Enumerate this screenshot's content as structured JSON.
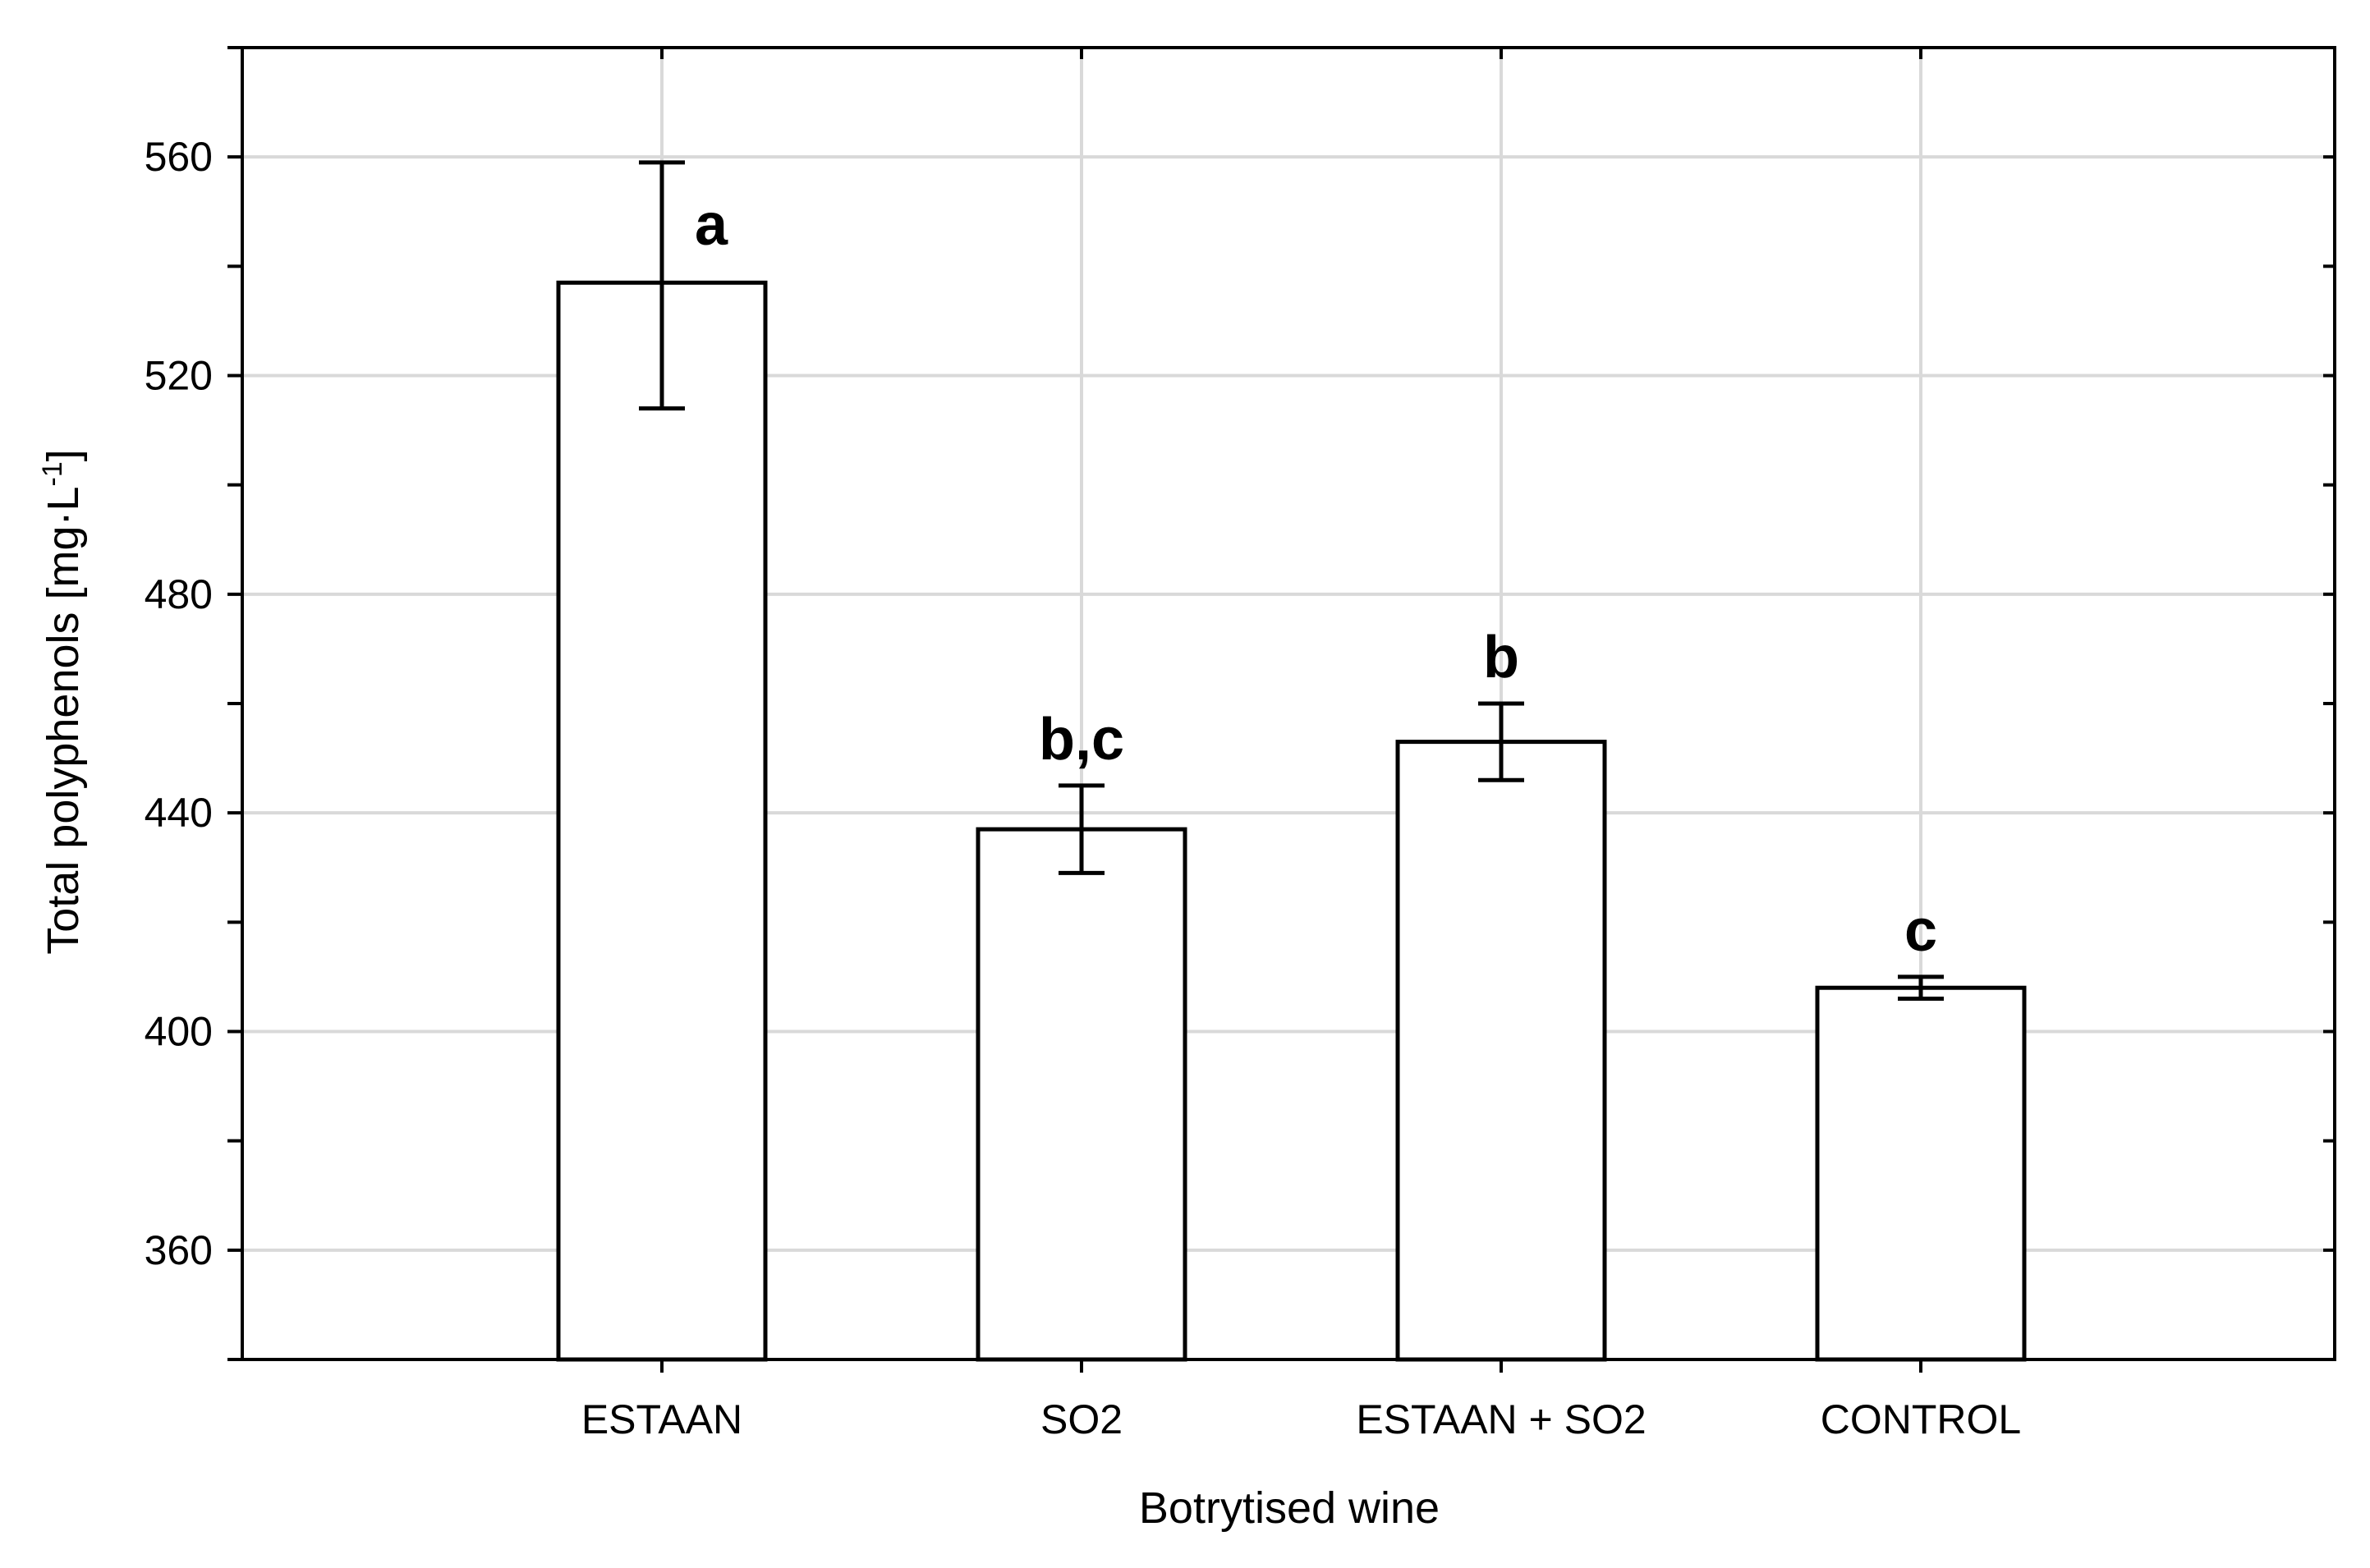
{
  "chart_data": {
    "type": "bar",
    "categories": [
      "ESTAAN",
      "SO2",
      "ESTAAN + SO2",
      "CONTROL"
    ],
    "values": [
      537,
      437,
      453,
      408
    ],
    "error_low": [
      514,
      429,
      446,
      406
    ],
    "error_high": [
      559,
      445,
      460,
      410
    ],
    "significance_labels": [
      "a",
      "b,c",
      "b",
      "c"
    ],
    "xlabel": "Botrytised wine",
    "ylabel": "Total polyphenols [mg·L",
    "ylabel_superscript": "-1",
    "ylabel_suffix": "]",
    "ylim": [
      340,
      580
    ],
    "yticks": [
      360,
      400,
      440,
      480,
      520,
      560
    ],
    "grid": true,
    "bar_color": "#ffffff",
    "bar_edge_color": "#000000",
    "grid_color": "#d9d9d9"
  }
}
